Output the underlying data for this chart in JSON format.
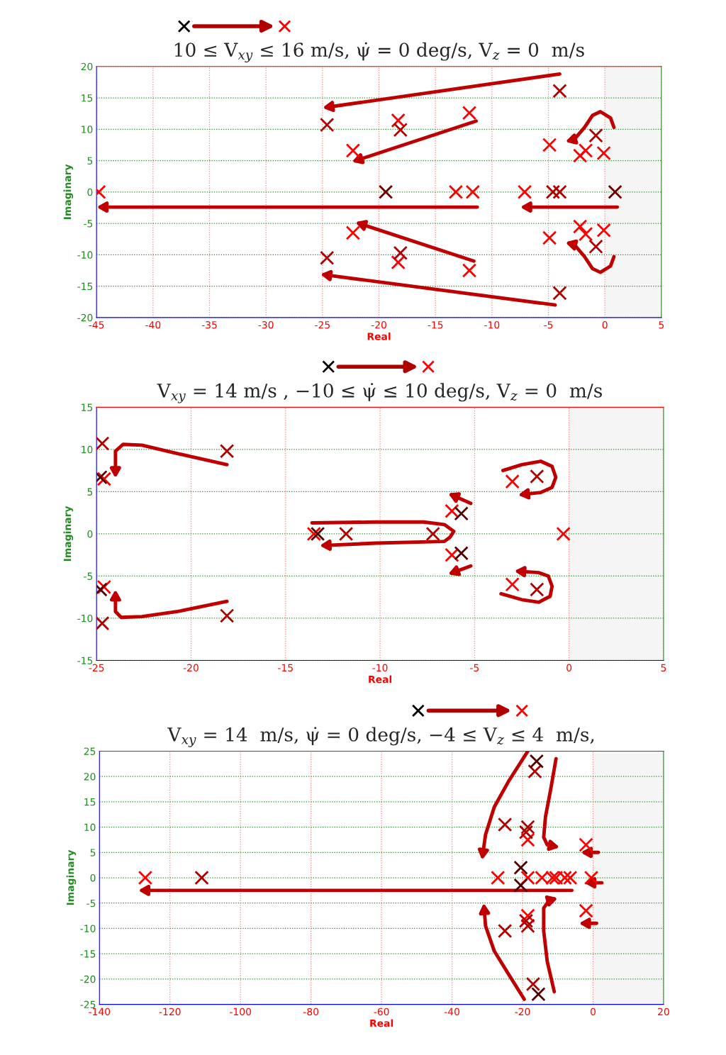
{
  "chart_data": [
    {
      "type": "scatter",
      "title": "10 ≤ V$_{xy}$ ≤ 16 m/s, ψ̇ = 0 deg/s, V$_{z}$ = 0  m/s",
      "xlabel": "Real",
      "ylabel": "Imaginary",
      "grid": true,
      "xlim": [
        -45,
        5
      ],
      "xticks": [
        -45,
        -40,
        -35,
        -30,
        -25,
        -20,
        -15,
        -10,
        -5,
        0,
        5
      ],
      "ylim": [
        -20,
        20
      ],
      "yticks": [
        -20,
        -15,
        -10,
        -5,
        0,
        5,
        10,
        15,
        20
      ],
      "bands": [
        {
          "axis": "x",
          "from": 0,
          "to": 5,
          "color": "#f5f5f5"
        }
      ],
      "series": [
        {
          "marker": "cross",
          "color": "#ff0000",
          "x": [
            -44.8,
            -22.3,
            -22.3,
            -18.3,
            -18.3,
            -13.2,
            -12.0,
            -12.0,
            -11.7,
            -7.1,
            -4.9,
            -4.9,
            -2.2,
            -2.2,
            -1.7,
            -1.7,
            -0.1,
            -0.1
          ],
          "values": [
            0,
            6.6,
            -6.5,
            11.4,
            -11.2,
            0,
            12.6,
            -12.5,
            0,
            0,
            7.5,
            -7.3,
            5.8,
            -5.5,
            6.6,
            -6.7,
            6.2,
            -6.1
          ]
        },
        {
          "marker": "cross",
          "color": "#b00000",
          "x": [
            -24.6,
            -24.6,
            -18.1,
            -18.1,
            -4.0,
            -4.0,
            -0.8,
            -0.8,
            -4.6,
            -4.0
          ],
          "values": [
            10.7,
            -10.5,
            9.9,
            -9.7,
            16.1,
            -16.1,
            9.0,
            -8.7,
            0,
            0
          ]
        },
        {
          "marker": "cross",
          "color": "#700000",
          "x": [
            -19.4,
            0.9
          ],
          "values": [
            0,
            0
          ]
        }
      ]
    },
    {
      "type": "scatter",
      "title": "V$_{xy}$ = 14 m/s , −10 ≤ ψ̇ ≤ 10 deg/s, V$_{z}$ = 0  m/s",
      "xlabel": "Real",
      "ylabel": "Imaginary",
      "grid": true,
      "xlim": [
        -25,
        5
      ],
      "xticks": [
        -25,
        -20,
        -15,
        -10,
        -5,
        0,
        5
      ],
      "ylim": [
        -15,
        15
      ],
      "yticks": [
        -15,
        -10,
        -5,
        0,
        5,
        10,
        15
      ],
      "bands": [
        {
          "axis": "x",
          "from": 0,
          "to": 5,
          "color": "#f5f5f5"
        }
      ],
      "series": [
        {
          "marker": "cross",
          "color": "#ff0000",
          "x": [
            -24.6,
            -24.6,
            -13.5,
            -6.2,
            -6.2,
            -3.0,
            -3.0,
            -0.3
          ],
          "values": [
            6.5,
            -6.3,
            0,
            2.7,
            -2.5,
            6.2,
            -6.0,
            0
          ]
        },
        {
          "marker": "cross",
          "color": "#b00000",
          "x": [
            -24.7,
            -24.7,
            -18.1,
            -18.1,
            -11.8,
            -7.2,
            -1.7,
            -1.7
          ],
          "values": [
            10.7,
            -10.6,
            9.8,
            -9.7,
            0,
            0,
            6.8,
            -6.6
          ]
        },
        {
          "marker": "cross",
          "color": "#500000",
          "x": [
            -24.8,
            -24.8,
            -13.3,
            -5.7,
            -5.7
          ],
          "values": [
            6.7,
            -6.6,
            0,
            2.4,
            -2.3
          ]
        }
      ]
    },
    {
      "type": "scatter",
      "title": "V$_{xy}$ = 14  m/s, ψ̇ = 0 deg/s, −4 ≤ V$_{z}$ ≤ 4  m/s,",
      "xlabel": "Real",
      "ylabel": "Imaginary",
      "grid": true,
      "xlim": [
        -140,
        20
      ],
      "xticks": [
        -140,
        -120,
        -100,
        -80,
        -60,
        -40,
        -20,
        0,
        20
      ],
      "ylim": [
        -25,
        25
      ],
      "yticks": [
        -25,
        -20,
        -15,
        -10,
        -5,
        0,
        5,
        10,
        15,
        20,
        25
      ],
      "bands": [
        {
          "axis": "x",
          "from": 0,
          "to": 20,
          "color": "#f5f5f5"
        }
      ],
      "series": [
        {
          "marker": "cross",
          "color": "#ff0000",
          "x": [
            -127,
            -27,
            -18.5,
            -18.5,
            -18.5,
            -14.5,
            -11.5,
            -10.5,
            -8,
            -6.5,
            -2,
            -2,
            -0.5
          ],
          "values": [
            0,
            0,
            7.5,
            -7.5,
            0,
            0,
            0,
            0,
            0,
            0,
            6.5,
            -6.5,
            0
          ]
        },
        {
          "marker": "cross",
          "color": "#b00000",
          "x": [
            -111,
            -25,
            -25,
            -18.5,
            -19,
            -19,
            -18.5,
            -16.5,
            -17
          ],
          "values": [
            0,
            10.5,
            -10.5,
            10,
            9,
            -8.5,
            -9.5,
            21,
            -21
          ]
        },
        {
          "marker": "cross",
          "color": "#500000",
          "x": [
            -16,
            -15.5,
            -20.5,
            -20.5
          ],
          "values": [
            23,
            -23,
            2,
            -1.5
          ]
        }
      ]
    }
  ]
}
